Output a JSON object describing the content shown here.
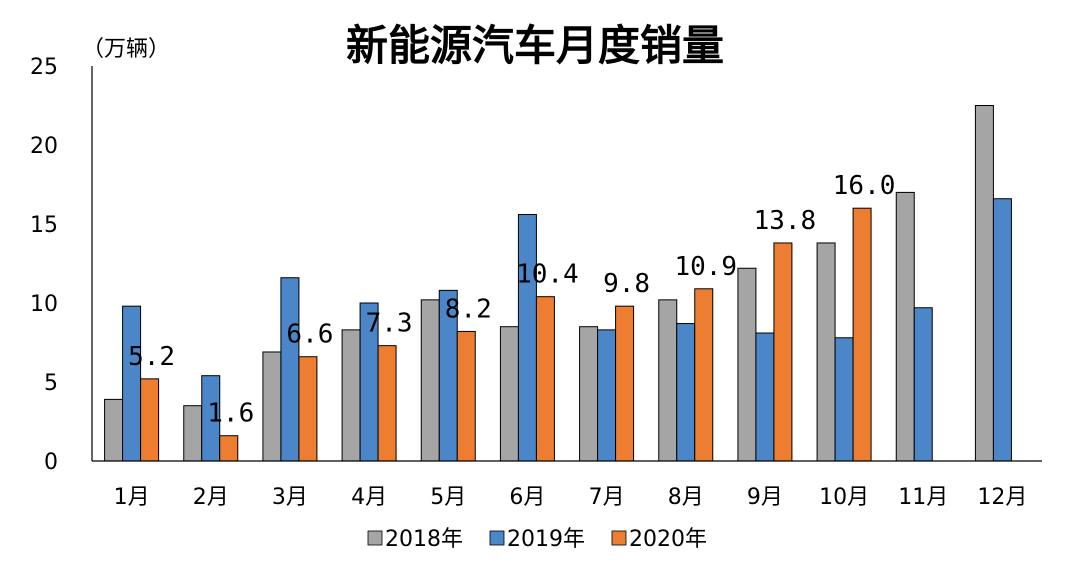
{
  "chart_data": {
    "type": "bar",
    "title": "新能源汽车月度销量",
    "unit_label": "（万辆）",
    "categories": [
      "1月",
      "2月",
      "3月",
      "4月",
      "5月",
      "6月",
      "7月",
      "8月",
      "9月",
      "10月",
      "11月",
      "12月"
    ],
    "ylim": [
      0,
      25
    ],
    "yticks": [
      0,
      5,
      10,
      15,
      20,
      25
    ],
    "grid": false,
    "legend_position": "bottom",
    "series": [
      {
        "name": "2018年",
        "color": "#a5a5a5",
        "values": [
          3.9,
          3.5,
          6.9,
          8.3,
          10.2,
          8.5,
          8.5,
          10.2,
          12.2,
          13.8,
          17.0,
          22.5
        ]
      },
      {
        "name": "2019年",
        "color": "#4a86c8",
        "values": [
          9.8,
          5.4,
          11.6,
          10.0,
          10.8,
          15.6,
          8.3,
          8.7,
          8.1,
          7.8,
          9.7,
          16.6
        ]
      },
      {
        "name": "2020年",
        "color": "#ed7d31",
        "values": [
          5.2,
          1.6,
          6.6,
          7.3,
          8.2,
          10.4,
          9.8,
          10.9,
          13.8,
          16.0,
          null,
          null
        ]
      }
    ],
    "data_labels": {
      "series": "2020年",
      "labels": [
        "5.2",
        "1.6",
        "6.6",
        "7.3",
        "8.2",
        "10.4",
        "9.8",
        "10.9",
        "13.8",
        "16.0"
      ]
    }
  }
}
